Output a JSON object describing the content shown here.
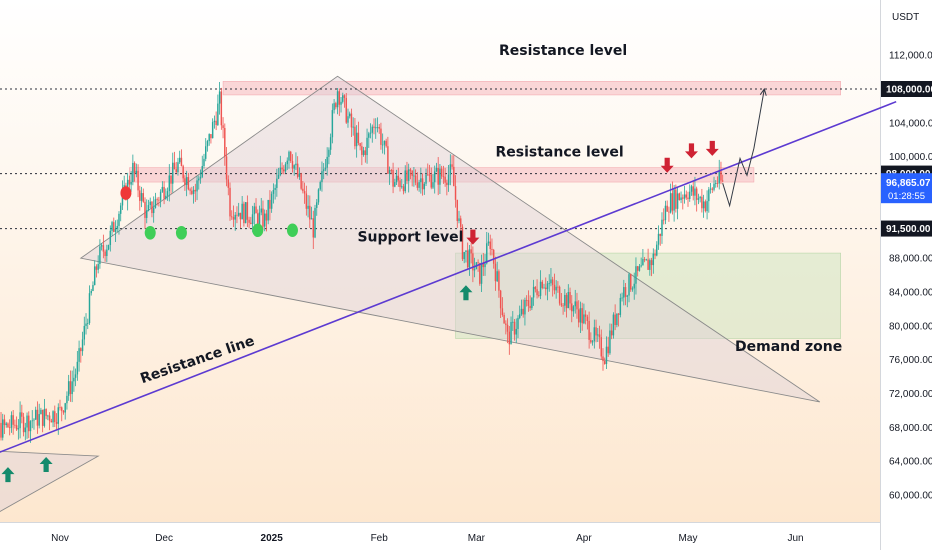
{
  "chart_data": {
    "type": "candlestick",
    "currency": "USDT",
    "ylim": [
      57000,
      120000
    ],
    "y_ticks": [
      "60,000.00",
      "64,000.00",
      "68,000.00",
      "72,000.00",
      "76,000.00",
      "80,000.00",
      "84,000.00",
      "88,000.00",
      "92,000.00",
      "96,000.00",
      "100,000.00",
      "104,000.00",
      "108,000.00",
      "112,000.00"
    ],
    "x_ticks": [
      {
        "label": "Nov",
        "date": "2024-11-01"
      },
      {
        "label": "Dec",
        "date": "2024-12-01"
      },
      {
        "label": "2025",
        "date": "2025-01-01"
      },
      {
        "label": "Feb",
        "date": "2025-02-01"
      },
      {
        "label": "Mar",
        "date": "2025-03-01"
      },
      {
        "label": "Apr",
        "date": "2025-04-01"
      },
      {
        "label": "May",
        "date": "2025-05-01"
      },
      {
        "label": "Jun",
        "date": "2025-06-01"
      }
    ],
    "xlim": [
      "2024-10-08",
      "2025-06-30"
    ],
    "price_path": [
      [
        "2024-10-08",
        67000
      ],
      [
        "2024-10-20",
        68500
      ],
      [
        "2024-11-01",
        69800
      ],
      [
        "2024-11-06",
        75000
      ],
      [
        "2024-11-12",
        88000
      ],
      [
        "2024-11-15",
        90000
      ],
      [
        "2024-11-22",
        98500
      ],
      [
        "2024-11-26",
        93000
      ],
      [
        "2024-12-05",
        99000
      ],
      [
        "2024-12-10",
        96000
      ],
      [
        "2024-12-17",
        106500
      ],
      [
        "2024-12-20",
        94000
      ],
      [
        "2024-12-30",
        92500
      ],
      [
        "2025-01-06",
        101000
      ],
      [
        "2025-01-13",
        91500
      ],
      [
        "2025-01-20",
        108000
      ],
      [
        "2025-01-27",
        100000
      ],
      [
        "2025-01-31",
        104500
      ],
      [
        "2025-02-05",
        97000
      ],
      [
        "2025-02-15",
        97500
      ],
      [
        "2025-02-22",
        98000
      ],
      [
        "2025-02-25",
        89000
      ],
      [
        "2025-03-02",
        86000
      ],
      [
        "2025-03-05",
        90000
      ],
      [
        "2025-03-10",
        78500
      ],
      [
        "2025-03-20",
        85500
      ],
      [
        "2025-03-30",
        82000
      ],
      [
        "2025-04-07",
        76500
      ],
      [
        "2025-04-12",
        84000
      ],
      [
        "2025-04-21",
        88000
      ],
      [
        "2025-04-25",
        94500
      ],
      [
        "2025-05-01",
        96000
      ],
      [
        "2025-05-06",
        94500
      ],
      [
        "2025-05-09",
        97200
      ],
      [
        "2025-05-11",
        96865
      ]
    ],
    "projection_path": [
      [
        "2025-05-11",
        96865
      ],
      [
        "2025-05-13",
        94200
      ],
      [
        "2025-05-16",
        99800
      ],
      [
        "2025-05-18",
        97800
      ],
      [
        "2025-05-20",
        101000
      ],
      [
        "2025-05-23",
        108000
      ]
    ],
    "horizontal_levels": [
      {
        "price": 108000,
        "label": "108,000.00",
        "style": "dotted"
      },
      {
        "price": 98000,
        "label": "98,000.00",
        "style": "dotted"
      },
      {
        "price": 91500,
        "label": "91,500.00",
        "style": "dotted"
      }
    ],
    "current_price": {
      "label": "96,865.07",
      "countdown": "01:28:55",
      "price": 96865
    },
    "zones": [
      {
        "name": "resistance-zone-upper",
        "from": "2024-12-18",
        "to": "2025-06-14",
        "low": 107300,
        "high": 108900
      },
      {
        "name": "resistance-zone-lower",
        "from": "2024-11-21",
        "to": "2025-05-20",
        "low": 97000,
        "high": 98700
      },
      {
        "name": "demand-zone",
        "from": "2025-02-23",
        "to": "2025-06-14",
        "low": 78500,
        "high": 88600
      }
    ],
    "triangles": [
      {
        "name": "symmetrical-triangle",
        "points": [
          [
            "2024-11-07",
            88000
          ],
          [
            "2025-01-20",
            109500
          ],
          [
            "2025-06-08",
            71000
          ]
        ]
      },
      {
        "name": "small-triangle",
        "points": [
          [
            "2024-10-08",
            65300
          ],
          [
            "2024-11-12",
            64600
          ],
          [
            "2024-10-08",
            56500
          ]
        ]
      }
    ],
    "trendline": {
      "from": [
        "2024-10-08",
        64000
      ],
      "to": [
        "2025-06-30",
        106500
      ],
      "color": "#5c3ad1"
    },
    "annotations": [
      {
        "text": "Resistance level",
        "date": "2025-03-26",
        "price": 112000
      },
      {
        "text": "Resistance level",
        "date": "2025-03-25",
        "price": 100000
      },
      {
        "text": "Support level",
        "date": "2025-02-10",
        "price": 90000
      },
      {
        "text": "Demand zone",
        "date": "2025-05-30",
        "price": 77000
      },
      {
        "text": "Resistance line",
        "date": "2024-12-11",
        "price": 75500,
        "rotate": -19
      }
    ],
    "up_arrows": [
      [
        "2024-10-17",
        63300
      ],
      [
        "2024-10-28",
        64500
      ],
      [
        "2025-02-26",
        84800
      ]
    ],
    "down_arrows": [
      [
        "2025-02-28",
        89600
      ],
      [
        "2025-04-25",
        98100
      ],
      [
        "2025-05-02",
        99800
      ],
      [
        "2025-05-08",
        100100
      ]
    ],
    "green_dots": [
      [
        "2024-11-27",
        91000
      ],
      [
        "2024-12-06",
        91000
      ],
      [
        "2024-12-28",
        91300
      ],
      [
        "2025-01-07",
        91300
      ]
    ],
    "red_dots": [
      [
        "2024-11-20",
        95700
      ]
    ]
  },
  "colors": {
    "up": "#26a69a",
    "down": "#ef5350",
    "trend": "#5c3ad1",
    "resistance_zone": "#f8c9cc",
    "demand_zone": "#cfe5c3",
    "triangle_fill": "#ddd0d6",
    "price_tag": "#2962ff",
    "arrow_up": "#148b6c",
    "arrow_down": "#cf2233",
    "dot_green": "#3fce58",
    "dot_red": "#ef3838"
  }
}
